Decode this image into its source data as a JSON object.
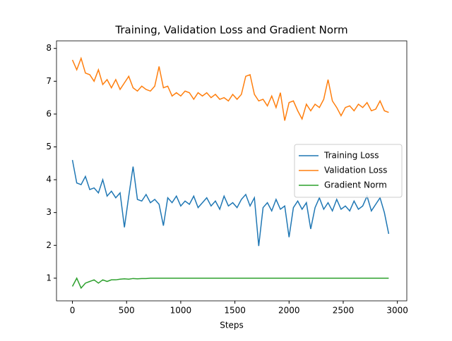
{
  "chart_data": {
    "type": "line",
    "title": "Training, Validation Loss and Gradient Norm",
    "xlabel": "Steps",
    "x": [
      0,
      40,
      80,
      120,
      160,
      200,
      240,
      280,
      320,
      360,
      400,
      440,
      480,
      520,
      560,
      600,
      640,
      680,
      720,
      760,
      800,
      840,
      880,
      920,
      960,
      1000,
      1040,
      1080,
      1120,
      1160,
      1200,
      1240,
      1280,
      1320,
      1360,
      1400,
      1440,
      1480,
      1520,
      1560,
      1600,
      1640,
      1680,
      1720,
      1760,
      1800,
      1840,
      1880,
      1920,
      1960,
      2000,
      2040,
      2080,
      2120,
      2160,
      2200,
      2240,
      2280,
      2320,
      2360,
      2400,
      2440,
      2480,
      2520,
      2560,
      2600,
      2640,
      2680,
      2720,
      2760,
      2800,
      2840,
      2880,
      2920
    ],
    "series": [
      {
        "name": "Training Loss",
        "color": "#1f77b4",
        "values": [
          4.6,
          3.9,
          3.85,
          4.1,
          3.7,
          3.75,
          3.6,
          4.0,
          3.5,
          3.65,
          3.45,
          3.6,
          2.55,
          3.5,
          4.4,
          3.4,
          3.35,
          3.55,
          3.3,
          3.4,
          3.25,
          2.6,
          3.45,
          3.3,
          3.5,
          3.2,
          3.35,
          3.25,
          3.5,
          3.15,
          3.3,
          3.45,
          3.2,
          3.35,
          3.1,
          3.5,
          3.2,
          3.3,
          3.15,
          3.4,
          3.55,
          3.2,
          3.45,
          1.98,
          3.15,
          3.3,
          3.05,
          3.4,
          3.1,
          3.2,
          2.25,
          3.15,
          3.35,
          3.1,
          3.3,
          2.5,
          3.15,
          3.45,
          3.1,
          3.3,
          3.05,
          3.4,
          3.1,
          3.2,
          3.05,
          3.35,
          3.1,
          3.2,
          3.5,
          3.05,
          3.25,
          3.45,
          3.0,
          2.35
        ]
      },
      {
        "name": "Validation Loss",
        "color": "#ff7f0e",
        "values": [
          7.65,
          7.35,
          7.7,
          7.25,
          7.2,
          7.0,
          7.35,
          6.9,
          7.05,
          6.8,
          7.05,
          6.75,
          6.95,
          7.15,
          6.8,
          6.7,
          6.85,
          6.75,
          6.7,
          6.85,
          7.45,
          6.8,
          6.85,
          6.55,
          6.65,
          6.55,
          6.7,
          6.65,
          6.45,
          6.65,
          6.55,
          6.65,
          6.5,
          6.6,
          6.45,
          6.5,
          6.4,
          6.6,
          6.45,
          6.6,
          7.15,
          7.2,
          6.6,
          6.4,
          6.45,
          6.25,
          6.55,
          6.2,
          6.65,
          5.8,
          6.35,
          6.4,
          6.1,
          5.85,
          6.3,
          6.1,
          6.3,
          6.2,
          6.45,
          7.05,
          6.4,
          6.2,
          5.95,
          6.2,
          6.25,
          6.1,
          6.3,
          6.2,
          6.35,
          6.1,
          6.15,
          6.4,
          6.1,
          6.05
        ]
      },
      {
        "name": "Gradient Norm",
        "color": "#2ca02c",
        "values": [
          0.75,
          1.0,
          0.7,
          0.85,
          0.9,
          0.95,
          0.85,
          0.95,
          0.9,
          0.95,
          0.95,
          0.97,
          0.98,
          0.97,
          0.99,
          0.98,
          0.99,
          0.99,
          1.0,
          1.0,
          1,
          1,
          1,
          1,
          1,
          1,
          1,
          1,
          1,
          1,
          1,
          1,
          1,
          1,
          1,
          1,
          1,
          1,
          1,
          1,
          1,
          1,
          1,
          1,
          1,
          1,
          1,
          1,
          1,
          1,
          1,
          1,
          1,
          1,
          1,
          1,
          1,
          1,
          1,
          1,
          1,
          1,
          1,
          1,
          1,
          1,
          1,
          1,
          1,
          1,
          1,
          1,
          1,
          1
        ]
      }
    ],
    "xlim": [
      -147,
      3087
    ],
    "ylim": [
      0.31,
      8.23
    ],
    "xticks": [
      0,
      500,
      1000,
      1500,
      2000,
      2500,
      3000
    ],
    "yticks": [
      1,
      2,
      3,
      4,
      5,
      6,
      7,
      8
    ],
    "legend": "center right"
  }
}
